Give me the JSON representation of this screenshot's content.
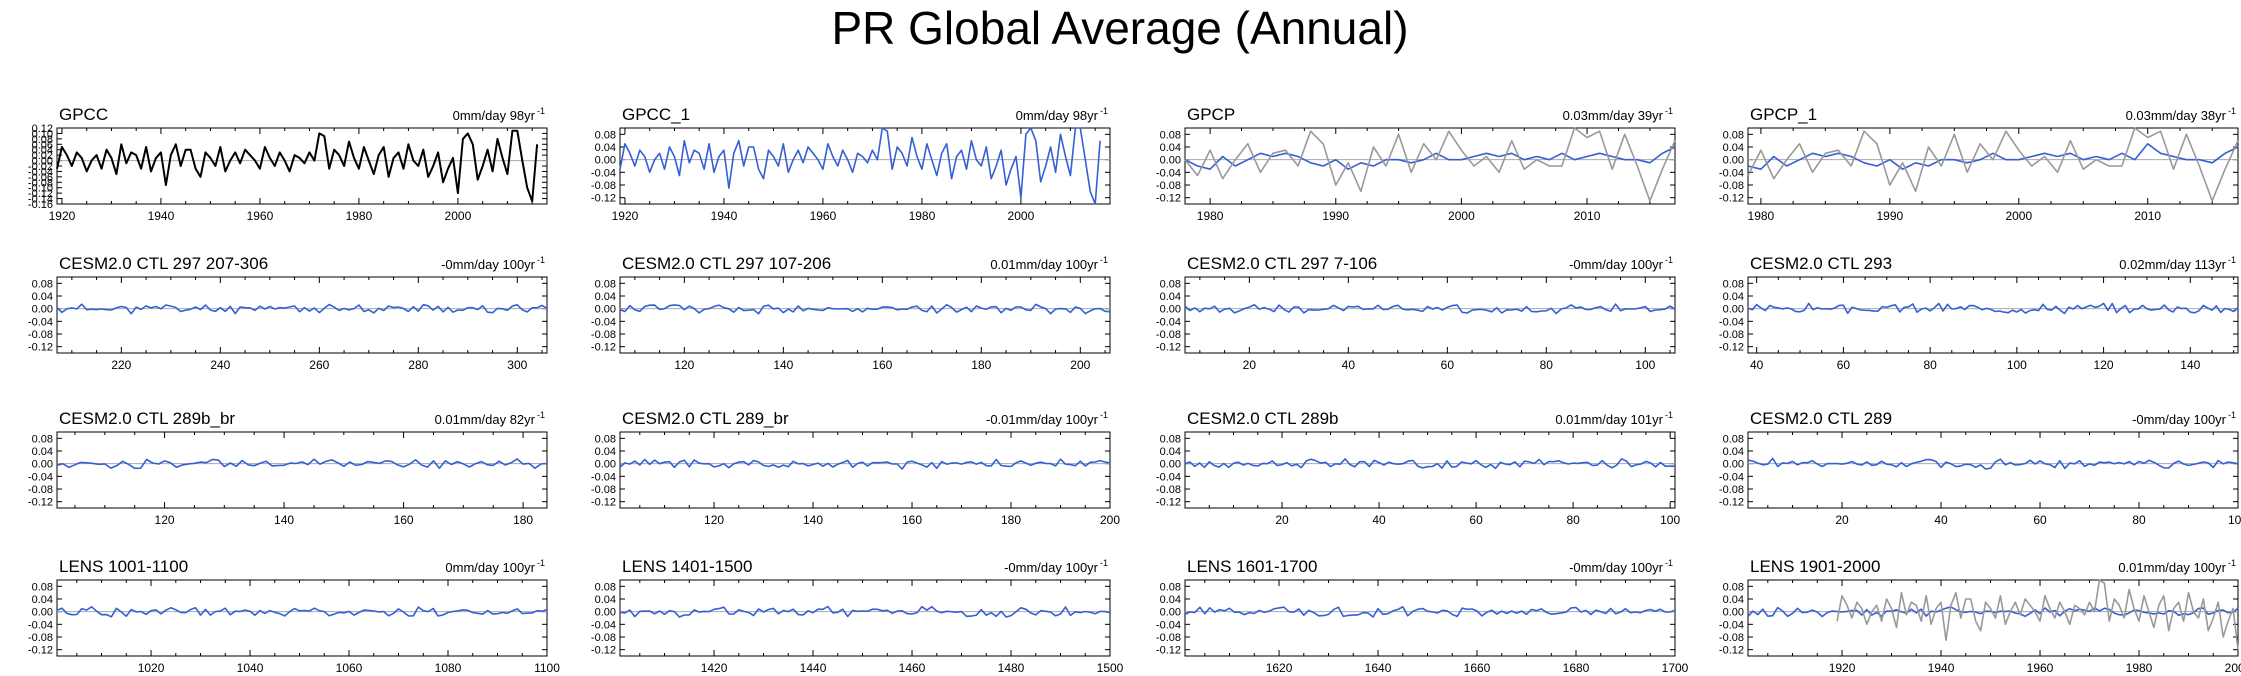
{
  "figure": {
    "title": "PR Global Average (Annual)"
  },
  "colors": {
    "obs": "#000000",
    "model": "#3560d4",
    "overlay": "#999999",
    "zero_line": "#aaaaaa",
    "axis": "#000000"
  },
  "chart_data": [
    {
      "type": "line",
      "panel": "GPCC",
      "title": "GPCC",
      "trend": "0mm/day 98yr",
      "trend_exp": "-1",
      "xlim": [
        1919,
        2018
      ],
      "ylim": [
        -0.16,
        0.12
      ],
      "yticks": [
        "0.12",
        "0.10",
        "0.08",
        "0.06",
        "0.04",
        "0.02",
        "0.00",
        "-0.02",
        "-0.04",
        "-0.06",
        "-0.08",
        "-0.10",
        "-0.12",
        "-0.14",
        "-0.16"
      ],
      "xticks": [
        1920,
        1940,
        1960,
        1980,
        2000
      ],
      "series": [
        {
          "name": "GPCC",
          "color": "obs",
          "values": [
            -0.03,
            0.05,
            0.02,
            -0.02,
            0.03,
            0.01,
            -0.04,
            0.0,
            0.02,
            -0.03,
            0.04,
            0.01,
            -0.05,
            0.06,
            -0.01,
            0.03,
            0.02,
            -0.03,
            0.05,
            -0.04,
            0.01,
            0.03,
            -0.09,
            0.02,
            0.06,
            -0.02,
            0.04,
            0.04,
            -0.03,
            -0.06,
            0.03,
            0.01,
            -0.02,
            0.05,
            -0.04,
            0.0,
            0.03,
            -0.01,
            0.04,
            0.02,
            0.0,
            -0.03,
            0.05,
            0.01,
            -0.02,
            0.03,
            0.0,
            -0.04,
            0.02,
            0.01,
            -0.01,
            0.03,
            0.0,
            0.1,
            0.09,
            -0.03,
            0.04,
            0.02,
            -0.02,
            0.07,
            0.01,
            -0.03,
            0.05,
            0.0,
            -0.05,
            0.02,
            0.05,
            -0.06,
            0.01,
            0.03,
            -0.03,
            0.06,
            0.0,
            -0.02,
            0.04,
            -0.06,
            -0.02,
            0.03,
            -0.08,
            -0.03,
            0.01,
            -0.12,
            0.08,
            0.1,
            0.06,
            -0.07,
            -0.02,
            0.04,
            -0.04,
            0.08,
            0.01,
            -0.05,
            0.11,
            0.11,
            0.0,
            -0.1,
            -0.15,
            0.06
          ]
        }
      ]
    },
    {
      "type": "line",
      "panel": "GPCC_1",
      "title": "GPCC_1",
      "trend": "0mm/day 98yr",
      "trend_exp": "-1",
      "xlim": [
        1919,
        2018
      ],
      "ylim": [
        -0.14,
        0.1
      ],
      "yticks": [
        "0.08",
        "0.04",
        "0.00",
        "-0.04",
        "-0.08",
        "-0.12"
      ],
      "xticks": [
        1920,
        1940,
        1960,
        1980,
        2000
      ],
      "series": [
        {
          "name": "GPCC_1",
          "color": "model",
          "values": [
            -0.03,
            0.05,
            0.02,
            -0.02,
            0.03,
            0.01,
            -0.04,
            0.0,
            0.02,
            -0.03,
            0.04,
            0.01,
            -0.05,
            0.06,
            -0.01,
            0.03,
            0.02,
            -0.03,
            0.05,
            -0.04,
            0.01,
            0.03,
            -0.09,
            0.02,
            0.06,
            -0.02,
            0.04,
            0.04,
            -0.03,
            -0.06,
            0.03,
            0.01,
            -0.02,
            0.05,
            -0.04,
            0.0,
            0.03,
            -0.01,
            0.04,
            0.02,
            0.0,
            -0.03,
            0.05,
            0.01,
            -0.02,
            0.03,
            0.0,
            -0.04,
            0.02,
            0.01,
            -0.01,
            0.03,
            0.0,
            0.1,
            0.09,
            -0.03,
            0.04,
            0.02,
            -0.02,
            0.07,
            0.01,
            -0.03,
            0.05,
            0.0,
            -0.05,
            0.02,
            0.05,
            -0.06,
            0.01,
            0.03,
            -0.03,
            0.06,
            0.0,
            -0.02,
            0.04,
            -0.06,
            -0.02,
            0.03,
            -0.08,
            -0.03,
            0.01,
            -0.12,
            0.08,
            0.1,
            0.06,
            -0.07,
            -0.02,
            0.04,
            -0.04,
            0.08,
            0.01,
            -0.05,
            0.11,
            0.11,
            0.0,
            -0.1,
            -0.15,
            0.06
          ]
        }
      ]
    },
    {
      "type": "line",
      "panel": "GPCP",
      "title": "GPCP",
      "trend": "0.03mm/day 39yr",
      "trend_exp": "-1",
      "xlim": [
        1978,
        2017
      ],
      "ylim": [
        -0.14,
        0.1
      ],
      "yticks": [
        "0.08",
        "0.04",
        "0.00",
        "-0.04",
        "-0.08",
        "-0.12"
      ],
      "xticks": [
        1980,
        1990,
        2000,
        2010
      ],
      "series": [
        {
          "name": "GPCP",
          "color": "model",
          "values": [
            0.0,
            -0.02,
            -0.03,
            0.01,
            -0.02,
            0.0,
            0.02,
            0.01,
            0.02,
            0.01,
            -0.01,
            -0.02,
            0.0,
            -0.03,
            -0.01,
            -0.02,
            0.0,
            0.0,
            -0.01,
            0.0,
            0.02,
            0.0,
            0.0,
            0.01,
            0.02,
            0.01,
            0.02,
            0.0,
            0.01,
            0.0,
            0.02,
            0.0,
            0.01,
            0.02,
            0.01,
            0.0,
            0.0,
            -0.01,
            0.02,
            0.04
          ]
        },
        {
          "name": "GPCP overlay",
          "color": "overlay",
          "values": [
            0.0,
            -0.05,
            0.03,
            -0.06,
            0.0,
            0.05,
            -0.04,
            0.02,
            0.03,
            -0.02,
            0.09,
            0.05,
            -0.08,
            -0.01,
            -0.1,
            0.04,
            -0.02,
            0.08,
            -0.04,
            0.05,
            0.0,
            0.09,
            0.03,
            -0.02,
            0.01,
            -0.04,
            0.06,
            -0.03,
            0.0,
            -0.02,
            -0.02,
            0.11,
            0.07,
            0.09,
            -0.03,
            0.08,
            -0.02,
            -0.13,
            -0.03,
            0.06
          ]
        }
      ]
    },
    {
      "type": "line",
      "panel": "GPCP_1",
      "title": "GPCP_1",
      "trend": "0.03mm/day 38yr",
      "trend_exp": "-1",
      "xlim": [
        1979,
        2017
      ],
      "ylim": [
        -0.14,
        0.1
      ],
      "yticks": [
        "0.08",
        "0.04",
        "0.00",
        "-0.04",
        "-0.08",
        "-0.12"
      ],
      "xticks": [
        1980,
        1990,
        2000,
        2010
      ],
      "series": [
        {
          "name": "GPCP_1",
          "color": "model",
          "values": [
            -0.02,
            -0.03,
            0.01,
            -0.02,
            0.0,
            0.02,
            0.01,
            0.02,
            0.01,
            -0.01,
            -0.02,
            0.0,
            -0.03,
            -0.01,
            -0.02,
            0.0,
            0.0,
            -0.01,
            0.0,
            0.02,
            0.0,
            0.0,
            0.01,
            0.02,
            0.01,
            0.02,
            0.0,
            0.01,
            0.0,
            0.02,
            0.0,
            0.05,
            0.02,
            0.01,
            0.0,
            0.0,
            -0.01,
            0.02,
            0.04
          ]
        },
        {
          "name": "GPCP_1 overlay",
          "color": "overlay",
          "values": [
            -0.05,
            0.03,
            -0.06,
            0.0,
            0.05,
            -0.04,
            0.02,
            0.03,
            -0.02,
            0.09,
            0.05,
            -0.08,
            -0.01,
            -0.1,
            0.04,
            -0.02,
            0.08,
            -0.04,
            0.05,
            0.0,
            0.09,
            0.03,
            -0.02,
            0.01,
            -0.04,
            0.06,
            -0.03,
            0.0,
            -0.02,
            -0.02,
            0.11,
            0.07,
            0.09,
            -0.03,
            0.08,
            -0.02,
            -0.13,
            -0.03,
            0.06
          ]
        }
      ]
    },
    {
      "type": "line",
      "panel": "CESM2.0 CTL 297 207-306",
      "title": "CESM2.0 CTL 297 207-306",
      "trend": "-0mm/day 100yr",
      "trend_exp": "-1",
      "xlim": [
        207,
        306
      ],
      "ylim": [
        -0.14,
        0.1
      ],
      "yticks": [
        "0.08",
        "0.04",
        "0.00",
        "-0.04",
        "-0.08",
        "-0.12"
      ],
      "xticks": [
        220,
        240,
        260,
        280,
        300
      ],
      "series": [
        {
          "name": "CTL 297 207-306",
          "color": "model",
          "amp": 0.011,
          "seed": 11
        }
      ]
    },
    {
      "type": "line",
      "panel": "CESM2.0 CTL 297 107-206",
      "title": "CESM2.0 CTL 297 107-206",
      "trend": "0.01mm/day 100yr",
      "trend_exp": "-1",
      "xlim": [
        107,
        206
      ],
      "ylim": [
        -0.14,
        0.1
      ],
      "yticks": [
        "0.08",
        "0.04",
        "0.00",
        "-0.04",
        "-0.08",
        "-0.12"
      ],
      "xticks": [
        120,
        140,
        160,
        180,
        200
      ],
      "series": [
        {
          "name": "CTL 297 107-206",
          "color": "model",
          "amp": 0.011,
          "seed": 12
        }
      ]
    },
    {
      "type": "line",
      "panel": "CESM2.0 CTL 297 7-106",
      "title": "CESM2.0 CTL 297 7-106",
      "trend": "-0mm/day 100yr",
      "trend_exp": "-1",
      "xlim": [
        7,
        106
      ],
      "ylim": [
        -0.14,
        0.1
      ],
      "yticks": [
        "0.08",
        "0.04",
        "0.00",
        "-0.04",
        "-0.08",
        "-0.12"
      ],
      "xticks": [
        20,
        40,
        60,
        80,
        100
      ],
      "series": [
        {
          "name": "CTL 297 7-106",
          "color": "model",
          "amp": 0.011,
          "seed": 13
        }
      ]
    },
    {
      "type": "line",
      "panel": "CESM2.0 CTL 293",
      "title": "CESM2.0 CTL 293",
      "trend": "0.02mm/day 113yr",
      "trend_exp": "-1",
      "xlim": [
        38,
        151
      ],
      "ylim": [
        -0.14,
        0.1
      ],
      "yticks": [
        "0.08",
        "0.04",
        "0.00",
        "-0.04",
        "-0.08",
        "-0.12"
      ],
      "xticks": [
        40,
        60,
        80,
        100,
        120,
        140
      ],
      "series": [
        {
          "name": "CTL 293",
          "color": "model",
          "amp": 0.011,
          "seed": 14
        }
      ]
    },
    {
      "type": "line",
      "panel": "CESM2.0 CTL 289b_br",
      "title": "CESM2.0 CTL 289b_br",
      "trend": "0.01mm/day 82yr",
      "trend_exp": "-1",
      "xlim": [
        102,
        184
      ],
      "ylim": [
        -0.14,
        0.1
      ],
      "yticks": [
        "0.08",
        "0.04",
        "0.00",
        "-0.04",
        "-0.08",
        "-0.12"
      ],
      "xticks": [
        120,
        140,
        160,
        180
      ],
      "series": [
        {
          "name": "CTL 289b_br",
          "color": "model",
          "amp": 0.011,
          "seed": 15
        }
      ]
    },
    {
      "type": "line",
      "panel": "CESM2.0 CTL 289_br",
      "title": "CESM2.0 CTL 289_br",
      "trend": "-0.01mm/day 100yr",
      "trend_exp": "-1",
      "xlim": [
        101,
        200
      ],
      "ylim": [
        -0.14,
        0.1
      ],
      "yticks": [
        "0.08",
        "0.04",
        "0.00",
        "-0.04",
        "-0.08",
        "-0.12"
      ],
      "xticks": [
        120,
        140,
        160,
        180,
        200
      ],
      "series": [
        {
          "name": "CTL 289_br",
          "color": "model",
          "amp": 0.011,
          "seed": 16
        }
      ]
    },
    {
      "type": "line",
      "panel": "CESM2.0 CTL 289b",
      "title": "CESM2.0 CTL 289b",
      "trend": "0.01mm/day 101yr",
      "trend_exp": "-1",
      "xlim": [
        0,
        101
      ],
      "ylim": [
        -0.14,
        0.1
      ],
      "yticks": [
        "0.08",
        "0.04",
        "0.00",
        "-0.04",
        "-0.08",
        "-0.12"
      ],
      "xticks": [
        20,
        40,
        60,
        80,
        100
      ],
      "series": [
        {
          "name": "CTL 289b",
          "color": "model",
          "amp": 0.011,
          "seed": 17
        }
      ]
    },
    {
      "type": "line",
      "panel": "CESM2.0 CTL 289",
      "title": "CESM2.0 CTL 289",
      "trend": "-0mm/day 100yr",
      "trend_exp": "-1",
      "xlim": [
        1,
        100
      ],
      "ylim": [
        -0.14,
        0.1
      ],
      "yticks": [
        "0.08",
        "0.04",
        "0.00",
        "-0.04",
        "-0.08",
        "-0.12"
      ],
      "xticks": [
        20,
        40,
        60,
        80,
        100
      ],
      "series": [
        {
          "name": "CTL 289",
          "color": "model",
          "amp": 0.011,
          "seed": 18
        }
      ]
    },
    {
      "type": "line",
      "panel": "LENS 1001-1100",
      "title": "LENS 1001-1100",
      "trend": "0mm/day 100yr",
      "trend_exp": "-1",
      "xlim": [
        1001,
        1100
      ],
      "ylim": [
        -0.14,
        0.1
      ],
      "yticks": [
        "0.08",
        "0.04",
        "0.00",
        "-0.04",
        "-0.08",
        "-0.12"
      ],
      "xticks": [
        1020,
        1040,
        1060,
        1080,
        1100
      ],
      "series": [
        {
          "name": "LENS 1001-1100",
          "color": "model",
          "amp": 0.011,
          "seed": 19
        }
      ]
    },
    {
      "type": "line",
      "panel": "LENS 1401-1500",
      "title": "LENS 1401-1500",
      "trend": "-0mm/day 100yr",
      "trend_exp": "-1",
      "xlim": [
        1401,
        1500
      ],
      "ylim": [
        -0.14,
        0.1
      ],
      "yticks": [
        "0.08",
        "0.04",
        "0.00",
        "-0.04",
        "-0.08",
        "-0.12"
      ],
      "xticks": [
        1420,
        1440,
        1460,
        1480,
        1500
      ],
      "series": [
        {
          "name": "LENS 1401-1500",
          "color": "model",
          "amp": 0.011,
          "seed": 20
        }
      ]
    },
    {
      "type": "line",
      "panel": "LENS 1601-1700",
      "title": "LENS 1601-1700",
      "trend": "-0mm/day 100yr",
      "trend_exp": "-1",
      "xlim": [
        1601,
        1700
      ],
      "ylim": [
        -0.14,
        0.1
      ],
      "yticks": [
        "0.08",
        "0.04",
        "0.00",
        "-0.04",
        "-0.08",
        "-0.12"
      ],
      "xticks": [
        1620,
        1640,
        1660,
        1680,
        1700
      ],
      "series": [
        {
          "name": "LENS 1601-1700",
          "color": "model",
          "amp": 0.011,
          "seed": 21
        }
      ]
    },
    {
      "type": "line",
      "panel": "LENS 1901-2000",
      "title": "LENS 1901-2000",
      "trend": "0.01mm/day 100yr",
      "trend_exp": "-1",
      "xlim": [
        1901,
        2000
      ],
      "ylim": [
        -0.14,
        0.1
      ],
      "yticks": [
        "0.08",
        "0.04",
        "0.00",
        "-0.04",
        "-0.08",
        "-0.12"
      ],
      "xticks": [
        1920,
        1940,
        1960,
        1980,
        2000
      ],
      "series": [
        {
          "name": "LENS 1901-2000",
          "color": "model",
          "amp": 0.011,
          "seed": 22
        },
        {
          "name": "LENS 1901-2000 overlay",
          "color": "overlay",
          "x_start": 1919,
          "values": [
            -0.03,
            0.05,
            0.02,
            -0.02,
            0.03,
            0.01,
            -0.04,
            0.0,
            0.02,
            -0.03,
            0.04,
            0.01,
            -0.05,
            0.06,
            -0.01,
            0.03,
            0.02,
            -0.03,
            0.05,
            -0.04,
            0.01,
            0.03,
            -0.09,
            0.02,
            0.06,
            -0.02,
            0.04,
            0.04,
            -0.03,
            -0.06,
            0.03,
            0.01,
            -0.02,
            0.05,
            -0.04,
            0.0,
            0.03,
            -0.01,
            0.04,
            0.02,
            0.0,
            -0.03,
            0.05,
            0.01,
            -0.02,
            0.03,
            0.0,
            -0.04,
            0.02,
            0.01,
            -0.01,
            0.03,
            0.0,
            0.1,
            0.09,
            -0.03,
            0.04,
            0.02,
            -0.02,
            0.07,
            0.01,
            -0.03,
            0.05,
            0.0,
            -0.05,
            0.02,
            0.05,
            -0.06,
            0.01,
            0.03,
            -0.03,
            0.06,
            0.0,
            -0.02,
            0.04,
            -0.06,
            -0.02,
            0.03,
            -0.08,
            -0.03,
            0.01,
            -0.12
          ]
        }
      ]
    }
  ]
}
